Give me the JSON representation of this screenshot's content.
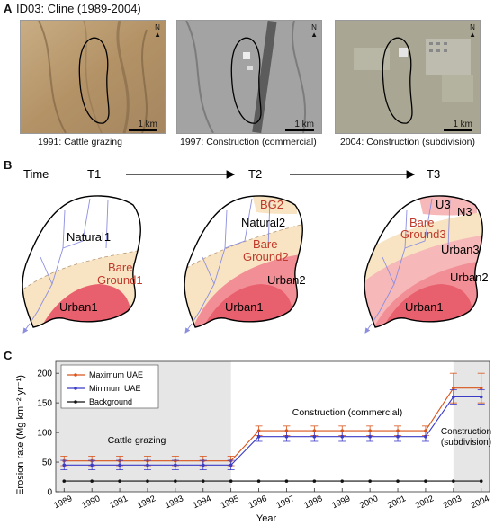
{
  "figure": {
    "panelA": {
      "label": "A",
      "title": "ID03: Cline (1989-2004)",
      "north": "N",
      "scale": "1 km",
      "photos": [
        {
          "caption": "1991: Cattle grazing",
          "tone": "#b79a72"
        },
        {
          "caption": "1997: Construction (commercial)",
          "tone": "#9c9c9c"
        },
        {
          "caption": "2004: Construction (subdivision)",
          "tone": "#a5a493"
        }
      ]
    },
    "panelB": {
      "label": "B",
      "time_label": "Time",
      "t1": "T1",
      "t2": "T2",
      "t3": "T3",
      "w1": {
        "natural": "Natural1",
        "bare_line1": "Bare",
        "bare_line2": "Ground1",
        "urban": "Urban1"
      },
      "w2": {
        "bg": "BG2",
        "natural": "Natural2",
        "bare_line1": "Bare",
        "bare_line2": "Ground2",
        "urban2": "Urban2",
        "urban1": "Urban1"
      },
      "w3": {
        "u": "U3",
        "n": "N3",
        "bare_line1": "Bare",
        "bare_line2": "Ground3",
        "urban3": "Urban3",
        "urban2": "Urban2",
        "urban1": "Urban1"
      },
      "colors": {
        "bare": "#f8e4c2",
        "bare_text": "#c0392b",
        "urban1": "#e8606e",
        "urban2": "#f28f96",
        "urban3": "#f6b8b8",
        "stream": "#8c8ee0"
      }
    },
    "panelC": {
      "label": "C",
      "chart_data": {
        "type": "line",
        "x": [
          1989,
          1990,
          1991,
          1992,
          1993,
          1994,
          1995,
          1996,
          1997,
          1998,
          1999,
          2000,
          2001,
          2002,
          2003,
          2004
        ],
        "x_tick_labels": [
          "1989",
          "1990",
          "1991",
          "1992",
          "1993",
          "1994",
          "1995",
          "1996",
          "1997",
          "1998",
          "1999",
          "2000",
          "2001",
          "2002",
          "2003",
          "2004"
        ],
        "series": [
          {
            "name": "Maximum UAE",
            "color": "#d9541a",
            "values": [
              52,
              52,
              52,
              52,
              52,
              52,
              52,
              103,
              103,
              103,
              103,
              103,
              103,
              103,
              175,
              175
            ],
            "error": [
              8,
              8,
              8,
              8,
              8,
              8,
              8,
              8,
              8,
              8,
              8,
              8,
              8,
              8,
              25,
              25
            ]
          },
          {
            "name": "Minimum UAE",
            "color": "#3b3bc8",
            "values": [
              45,
              45,
              45,
              45,
              45,
              45,
              45,
              93,
              93,
              93,
              93,
              93,
              93,
              93,
              160,
              160
            ],
            "error": [
              8,
              8,
              8,
              8,
              8,
              8,
              8,
              8,
              8,
              8,
              8,
              8,
              8,
              8,
              12,
              12
            ]
          },
          {
            "name": "Background",
            "color": "#111111",
            "values": [
              18,
              18,
              18,
              18,
              18,
              18,
              18,
              18,
              18,
              18,
              18,
              18,
              18,
              18,
              18,
              18
            ],
            "error": []
          }
        ],
        "xlabel": "Year",
        "ylabel": "Erosion rate (Mg km⁻² yr⁻¹)",
        "ylim": [
          0,
          220
        ],
        "yticks": [
          0,
          50,
          100,
          150,
          200
        ],
        "shaded_periods": [
          [
            1989,
            1995
          ],
          [
            2003,
            2004
          ]
        ],
        "shade_color": "#e6e6e6",
        "annotations": [
          "Cattle grazing",
          "Construction (commercial)",
          "Construction",
          "(subdivision)"
        ],
        "legend_placement": "top-left"
      }
    }
  }
}
